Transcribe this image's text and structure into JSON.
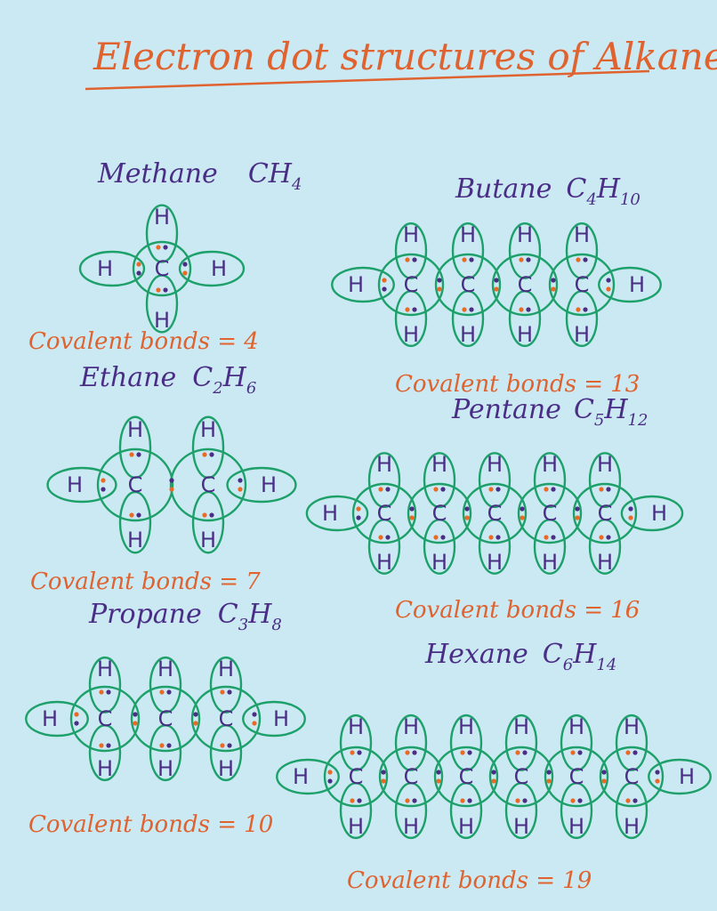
{
  "title": "Electron dot structures of Alkanes",
  "colors": {
    "background": "#cbe9f3",
    "title": "#e0622e",
    "names": "#4a2e86",
    "bond_rings": "#1ea06a",
    "electron_dot_orange": "#ea6a25",
    "electron_dot_violet": "#4a2e86"
  },
  "atom_labels": {
    "carbon": "C",
    "hydrogen": "H"
  },
  "molecules": [
    {
      "id": "methane",
      "name": "Methane",
      "formula": "CH",
      "formula_sub": "4",
      "carbons": 1,
      "bonds_text": "Covalent bonds = 4"
    },
    {
      "id": "ethane",
      "name": "Ethane",
      "formula": "C",
      "formula_sub": "2",
      "formula2": "H",
      "formula2_sub": "6",
      "carbons": 2,
      "bonds_text": "Covalent bonds = 7"
    },
    {
      "id": "propane",
      "name": "Propane",
      "formula": "C",
      "formula_sub": "3",
      "formula2": "H",
      "formula2_sub": "8",
      "carbons": 3,
      "bonds_text": "Covalent bonds = 10"
    },
    {
      "id": "butane",
      "name": "Butane",
      "formula": "C",
      "formula_sub": "4",
      "formula2": "H",
      "formula2_sub": "10",
      "carbons": 4,
      "bonds_text": "Covalent bonds = 13"
    },
    {
      "id": "pentane",
      "name": "Pentane",
      "formula": "C",
      "formula_sub": "5",
      "formula2": "H",
      "formula2_sub": "12",
      "carbons": 5,
      "bonds_text": "Covalent bonds = 16"
    },
    {
      "id": "hexane",
      "name": "Hexane",
      "formula": "C",
      "formula_sub": "6",
      "formula2": "H",
      "formula2_sub": "14",
      "carbons": 6,
      "bonds_text": "Covalent bonds = 19"
    }
  ]
}
